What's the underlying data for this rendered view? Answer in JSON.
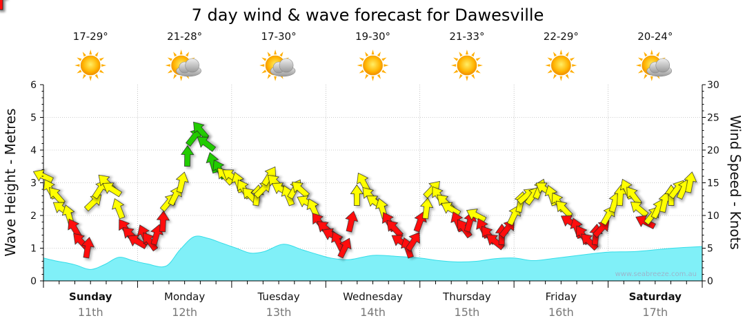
{
  "chart_data": {
    "type": "area",
    "title": "7 day wind & wave forecast for Dawesville",
    "ylabel_left": "Wave Height - Metres",
    "ylabel_right": "Wind Speed - Knots",
    "ylim_left": [
      0,
      6
    ],
    "ylim_right": [
      0,
      30
    ],
    "yticks_left": [
      "0",
      "1",
      "2",
      "3",
      "4",
      "5",
      "6"
    ],
    "yticks_right": [
      "0",
      "5",
      "10",
      "15",
      "20",
      "25",
      "30"
    ],
    "grid": true,
    "days": [
      {
        "name": "Sunday",
        "date": "11th",
        "temp": "17-29°",
        "weather": "sunny",
        "bold": true
      },
      {
        "name": "Monday",
        "date": "12th",
        "temp": "21-28°",
        "weather": "partly-cloudy",
        "bold": false
      },
      {
        "name": "Tuesday",
        "date": "13th",
        "temp": "17-30°",
        "weather": "partly-cloudy",
        "bold": false
      },
      {
        "name": "Wednesday",
        "date": "14th",
        "temp": "19-30°",
        "weather": "sunny",
        "bold": false
      },
      {
        "name": "Thursday",
        "date": "15th",
        "temp": "21-33°",
        "weather": "sunny",
        "bold": false
      },
      {
        "name": "Friday",
        "date": "16th",
        "temp": "22-29°",
        "weather": "sunny",
        "bold": false
      },
      {
        "name": "Saturday",
        "date": "17th",
        "temp": "20-24°",
        "weather": "partly-cloudy",
        "bold": true
      }
    ],
    "wave_height_series": {
      "x": [
        0,
        0.15,
        0.25,
        0.35,
        0.5,
        0.65,
        0.8,
        0.95,
        1.1,
        1.3,
        1.45,
        1.6,
        1.75,
        1.9,
        2.05,
        2.2,
        2.35,
        2.55,
        2.75,
        2.9,
        3.05,
        3.25,
        3.5,
        3.75,
        4.0,
        4.2,
        4.4,
        4.6,
        4.8,
        5.0,
        5.2,
        5.4,
        5.6,
        5.8,
        6.0,
        6.3,
        6.6,
        6.8,
        7.0
      ],
      "values": [
        0.7,
        0.6,
        0.55,
        0.48,
        0.35,
        0.5,
        0.72,
        0.62,
        0.52,
        0.45,
        0.95,
        1.35,
        1.3,
        1.15,
        1.0,
        0.85,
        0.9,
        1.12,
        0.95,
        0.82,
        0.7,
        0.65,
        0.78,
        0.75,
        0.7,
        0.62,
        0.58,
        0.6,
        0.68,
        0.7,
        0.62,
        0.68,
        0.75,
        0.82,
        0.88,
        0.9,
        0.98,
        1.02,
        1.05
      ]
    },
    "wind_series": {
      "x": [
        0.0,
        0.07,
        0.14,
        0.2,
        0.27,
        0.33,
        0.4,
        0.47,
        0.53,
        0.6,
        0.67,
        0.73,
        0.8,
        0.87,
        0.93,
        1.0,
        1.07,
        1.13,
        1.2,
        1.27,
        1.33,
        1.4,
        1.47,
        1.53,
        1.6,
        1.67,
        1.73,
        1.8,
        1.87,
        1.93,
        2.0,
        2.07,
        2.13,
        2.2,
        2.27,
        2.33,
        2.4,
        2.47,
        2.53,
        2.6,
        2.67,
        2.73,
        2.8,
        2.87,
        2.93,
        3.0,
        3.07,
        3.13,
        3.2,
        3.27,
        3.33,
        3.4,
        3.47,
        3.53,
        3.6,
        3.67,
        3.73,
        3.8,
        3.87,
        3.93,
        4.0,
        4.07,
        4.13,
        4.2,
        4.27,
        4.33,
        4.4,
        4.47,
        4.53,
        4.6,
        4.67,
        4.73,
        4.8,
        4.87,
        4.93,
        5.0,
        5.07,
        5.13,
        5.2,
        5.27,
        5.33,
        5.4,
        5.47,
        5.53,
        5.6,
        5.67,
        5.73,
        5.8,
        5.87,
        5.93,
        6.0,
        6.07,
        6.13,
        6.2,
        6.27,
        6.33,
        6.4,
        6.47,
        6.53,
        6.6,
        6.67,
        6.73,
        6.8,
        6.87,
        6.93,
        7.0
      ],
      "knots": [
        16,
        14,
        13,
        11,
        10,
        8,
        6,
        5,
        12,
        14,
        15,
        14,
        11,
        8,
        7,
        6,
        7,
        6,
        7,
        9,
        12,
        13,
        15,
        19,
        22,
        23,
        21,
        18,
        17,
        16,
        16,
        15,
        14,
        13,
        13,
        14,
        16,
        15,
        14,
        13,
        14,
        14,
        12,
        11,
        9,
        8,
        7,
        6,
        5,
        9,
        13,
        15,
        13,
        12,
        11,
        9,
        8,
        6,
        5,
        6,
        9,
        11,
        14,
        13,
        12,
        11,
        9,
        8,
        9,
        10,
        8,
        7,
        6,
        7,
        8,
        10,
        12,
        13,
        13,
        14,
        14,
        13,
        12,
        11,
        9,
        8,
        7,
        6,
        7,
        8,
        10,
        12,
        13,
        14,
        13,
        11,
        9,
        10,
        11,
        12,
        13,
        14,
        14,
        15
      ]
    }
  },
  "watermark": "www.seabreeze.com.au",
  "colors": {
    "wave_fill": "#80f0f8",
    "wave_line": "#33dde8",
    "wind_green": "#22cc00",
    "wind_yellow": "#ffff00",
    "wind_red": "#ff1111",
    "grid": "#999999"
  }
}
